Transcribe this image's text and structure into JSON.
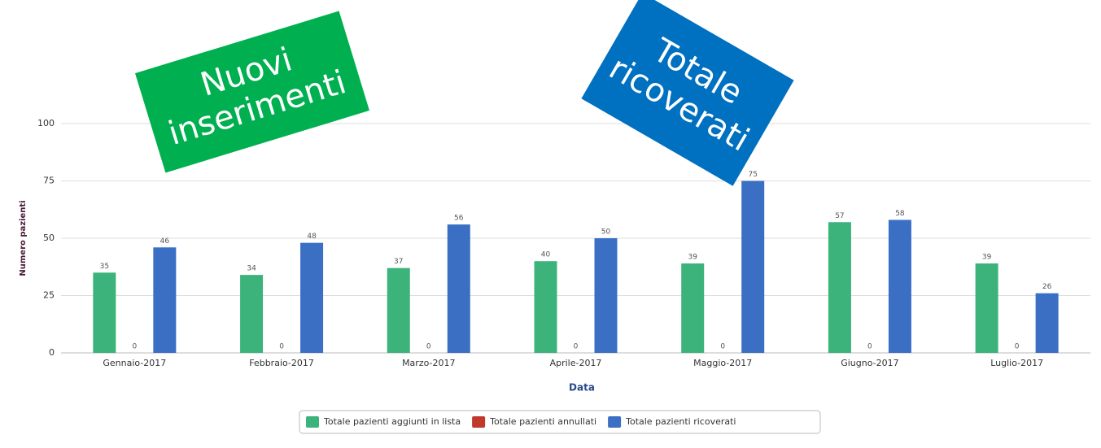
{
  "chart_data": {
    "type": "bar",
    "categories": [
      "Gennaio-2017",
      "Febbraio-2017",
      "Marzo-2017",
      "Aprile-2017",
      "Maggio-2017",
      "Giugno-2017",
      "Luglio-2017"
    ],
    "series": [
      {
        "name": "Totale pazienti aggiunti in lista",
        "color": "#3cb37a",
        "values": [
          35,
          34,
          37,
          40,
          39,
          57,
          39
        ]
      },
      {
        "name": "Totale pazienti annullati",
        "color": "#c0392b",
        "values": [
          0,
          0,
          0,
          0,
          0,
          0,
          0
        ]
      },
      {
        "name": "Totale pazienti ricoverati",
        "color": "#3a6fc4",
        "values": [
          46,
          48,
          56,
          50,
          75,
          58,
          26
        ]
      }
    ],
    "x_label": "Data",
    "y_label": "Numero pazienti",
    "ylim": [
      0,
      100
    ],
    "yticks": [
      0,
      25,
      50,
      75,
      100
    ],
    "grid": true,
    "legend": "bottom",
    "annotations": [
      {
        "lines": [
          "Nuovi",
          "inserimenti"
        ],
        "color": "#00b050"
      },
      {
        "lines": [
          "Totale",
          "ricoverati"
        ],
        "color": "#0070c0"
      }
    ]
  }
}
